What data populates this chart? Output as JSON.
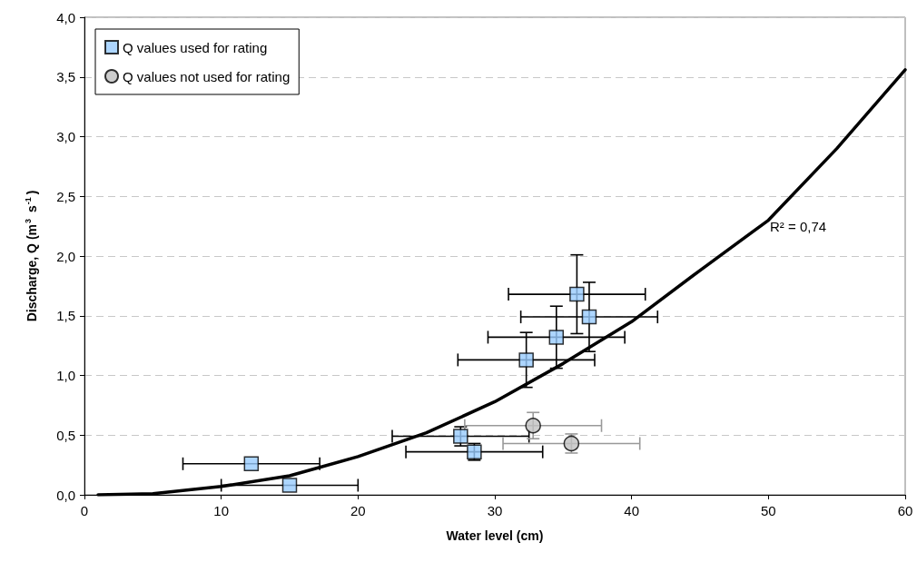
{
  "chart_data": {
    "type": "scatter",
    "xlabel": "Water level (cm)",
    "ylabel": "Discharge, Q (m$^{3}$ s$^{-1}$)",
    "xlim": [
      0,
      60
    ],
    "xticks": [
      0,
      10,
      20,
      30,
      40,
      50,
      60
    ],
    "ylim": [
      0,
      4
    ],
    "yticks": [
      {
        "value": 0,
        "label": "0,0"
      },
      {
        "value": 0.5,
        "label": "0,5"
      },
      {
        "value": 1,
        "label": "1,0"
      },
      {
        "value": 1.5,
        "label": "1,5"
      },
      {
        "value": 2,
        "label": "2,0"
      },
      {
        "value": 2.5,
        "label": "2,5"
      },
      {
        "value": 3,
        "label": "3,0"
      },
      {
        "value": 3.5,
        "label": "3,5"
      },
      {
        "value": 4,
        "label": "4,0"
      }
    ],
    "grid": "y",
    "legend": "top left",
    "series": [
      {
        "name": "Q values used for rating",
        "marker": "square",
        "color": "#99ccff",
        "x": [
          12.2,
          15,
          27.5,
          28.5,
          32.3,
          34.5,
          36,
          36.9
        ],
        "values": [
          0.26,
          0.08,
          0.49,
          0.36,
          1.13,
          1.32,
          1.68,
          1.49
        ],
        "xerrors": [
          5,
          5,
          5,
          5,
          5,
          5,
          5,
          5
        ],
        "errors": [
          null,
          null,
          0.08,
          0.07,
          0.23,
          0.26,
          0.33,
          0.29
        ]
      },
      {
        "name": "Q values not used for rating",
        "marker": "circle",
        "color": "#c0c0c0",
        "x": [
          32.8,
          35.6
        ],
        "values": [
          0.58,
          0.43
        ],
        "xerrors": [
          5,
          5
        ],
        "errors": [
          0.11,
          0.08
        ]
      },
      {
        "type": "line",
        "marker": "none",
        "color": "#000000",
        "x": [
          1,
          5,
          10,
          15,
          20,
          25,
          30,
          35,
          40,
          45,
          50,
          55,
          60
        ],
        "values": [
          0,
          0.01,
          0.07,
          0.16,
          0.32,
          0.52,
          0.78,
          1.1,
          1.45,
          1.88,
          2.3,
          2.9,
          3.56
        ]
      }
    ],
    "annotations": [
      "R² = 0,74"
    ]
  }
}
